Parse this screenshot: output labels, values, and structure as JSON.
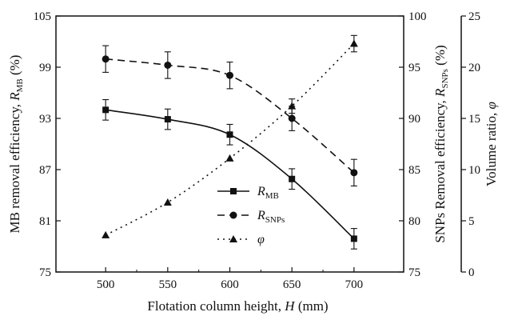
{
  "chart_data": {
    "type": "line",
    "x": [
      500,
      550,
      600,
      650,
      700
    ],
    "xlim": [
      460,
      740
    ],
    "x_ticks": [
      "500",
      "550",
      "600",
      "650",
      "700"
    ],
    "xlabel": {
      "text": "Flotation column height, ",
      "var": "H",
      "unit": " (mm)"
    },
    "axes": {
      "left": {
        "label": {
          "pre": "MB removal efficiency, ",
          "sym": "R",
          "sub": "MB",
          "post": " (%)"
        },
        "ylim": [
          75,
          105
        ],
        "ticks": [
          "75",
          "81",
          "87",
          "93",
          "99",
          "105"
        ]
      },
      "right1": {
        "label": {
          "pre": "SNPs Removal efficiency, ",
          "sym": "R",
          "sub": "SNPs",
          "post": " (%)"
        },
        "ylim": [
          75,
          100
        ],
        "ticks": [
          "75",
          "80",
          "85",
          "90",
          "95",
          "100"
        ]
      },
      "right2": {
        "label": {
          "pre": "Volume ratio, ",
          "sym": "φ",
          "sub": "",
          "post": ""
        },
        "ylim": [
          0,
          25
        ],
        "ticks": [
          "0",
          "5",
          "10",
          "15",
          "20",
          "25"
        ]
      }
    },
    "series": [
      {
        "name": "R",
        "name_sub": "MB",
        "axis": "left",
        "marker": "square",
        "dash": "solid",
        "values": [
          94.0,
          92.9,
          91.1,
          85.9,
          78.9
        ],
        "errors": [
          1.2,
          1.2,
          1.2,
          1.2,
          1.2
        ]
      },
      {
        "name": "R",
        "name_sub": "SNPs",
        "axis": "right1",
        "marker": "circle",
        "dash": "dashed",
        "values": [
          95.8,
          95.2,
          94.2,
          90.0,
          84.7
        ],
        "errors": [
          1.3,
          1.3,
          1.3,
          1.2,
          1.3
        ]
      },
      {
        "name": "φ",
        "name_sub": "",
        "axis": "right2",
        "marker": "triangle",
        "dash": "dotted",
        "values": [
          3.6,
          6.8,
          11.1,
          16.2,
          22.3
        ],
        "errors": [
          0,
          0,
          0,
          0.7,
          0.8
        ]
      }
    ],
    "legend_position": "bottom-center",
    "grid": false
  }
}
